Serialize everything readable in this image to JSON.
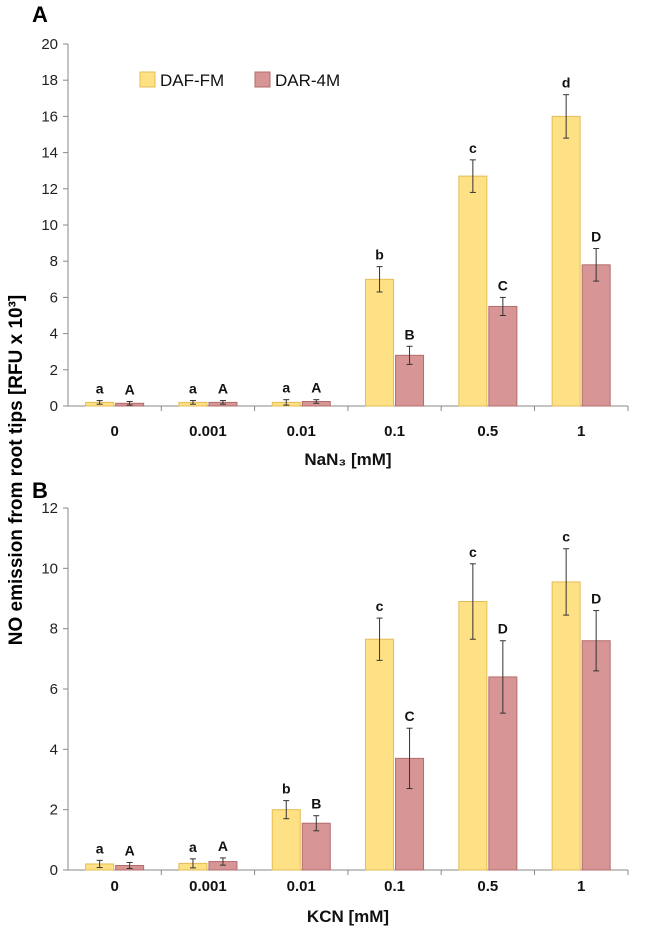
{
  "figure": {
    "ylabel_shared": "NO emission from root tips [RFU x 10³]"
  },
  "colors": {
    "daf": "#FFE185",
    "daf_edge": "#E4BC55",
    "dar": "#D89595",
    "dar_edge": "#B26C6C"
  },
  "chart_data": [
    {
      "panel": "A",
      "type": "bar",
      "title": "",
      "xlabel": "NaN₃ [mM]",
      "ylabel": "NO emission from root tips [RFU x 10³]",
      "categories": [
        "0",
        "0.001",
        "0.01",
        "0.1",
        "0.5",
        "1"
      ],
      "ylim": [
        0,
        20
      ],
      "yticks": [
        0,
        2,
        4,
        6,
        8,
        10,
        12,
        14,
        16,
        18,
        20
      ],
      "grid": false,
      "legend": {
        "position": "top-left",
        "entries": [
          "DAF-FM",
          "DAR-4M"
        ]
      },
      "series": [
        {
          "name": "DAF-FM",
          "values": [
            0.2,
            0.2,
            0.2,
            7.0,
            12.7,
            16.0
          ],
          "errors": [
            0.1,
            0.1,
            0.15,
            0.7,
            0.9,
            1.2
          ],
          "labels": [
            "a",
            "a",
            "a",
            "b",
            "c",
            "d"
          ]
        },
        {
          "name": "DAR-4M",
          "values": [
            0.15,
            0.2,
            0.25,
            2.8,
            5.5,
            7.8
          ],
          "errors": [
            0.1,
            0.1,
            0.1,
            0.5,
            0.5,
            0.9
          ],
          "labels": [
            "A",
            "A",
            "A",
            "B",
            "C",
            "D"
          ]
        }
      ]
    },
    {
      "panel": "B",
      "type": "bar",
      "title": "",
      "xlabel": "KCN [mM]",
      "ylabel": "NO emission from root tips [RFU x 10³]",
      "categories": [
        "0",
        "0.001",
        "0.01",
        "0.1",
        "0.5",
        "1"
      ],
      "ylim": [
        0,
        12
      ],
      "yticks": [
        0,
        2,
        4,
        6,
        8,
        10,
        12
      ],
      "grid": false,
      "legend": null,
      "series": [
        {
          "name": "DAF-FM",
          "values": [
            0.2,
            0.22,
            2.0,
            7.65,
            8.9,
            9.55
          ],
          "errors": [
            0.12,
            0.15,
            0.3,
            0.7,
            1.25,
            1.1
          ],
          "labels": [
            "a",
            "a",
            "b",
            "c",
            "c",
            "c"
          ]
        },
        {
          "name": "DAR-4M",
          "values": [
            0.15,
            0.28,
            1.55,
            3.7,
            6.4,
            7.6
          ],
          "errors": [
            0.1,
            0.12,
            0.25,
            1.0,
            1.2,
            1.0
          ],
          "labels": [
            "A",
            "A",
            "B",
            "C",
            "D",
            "D"
          ]
        }
      ]
    }
  ]
}
